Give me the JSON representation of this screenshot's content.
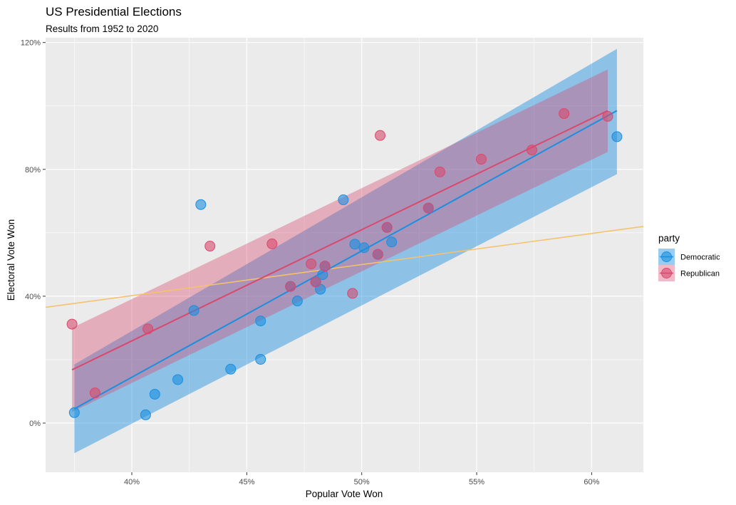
{
  "chart_data": {
    "type": "scatter",
    "title": "US Presidential Elections",
    "subtitle": "Results from 1952 to 2020",
    "xlabel": "Popular Vote Won",
    "ylabel": "Electoral Vote Won",
    "xlim": [
      0.3625,
      0.6225
    ],
    "ylim": [
      -0.155,
      1.215
    ],
    "x_ticks": [
      0.4,
      0.45,
      0.5,
      0.55,
      0.6
    ],
    "x_tick_labels": [
      "40%",
      "45%",
      "50%",
      "55%",
      "60%"
    ],
    "y_ticks": [
      0.0,
      0.4,
      0.8,
      1.2
    ],
    "y_tick_labels": [
      "0%",
      "40%",
      "80%",
      "120%"
    ],
    "grid": true,
    "legend": {
      "title": "party",
      "position": "right",
      "entries": [
        "Democratic",
        "Republican"
      ]
    },
    "colors": {
      "Democratic": "#1a8fe0",
      "Republican": "#d9496e",
      "overall_fit": "#f5c26b",
      "panel": "#ebebeb",
      "grid": "#ffffff"
    },
    "series": [
      {
        "name": "Democratic",
        "points": [
          [
            0.375,
            0.033
          ],
          [
            0.406,
            0.026
          ],
          [
            0.41,
            0.091
          ],
          [
            0.42,
            0.137
          ],
          [
            0.427,
            0.355
          ],
          [
            0.43,
            0.689
          ],
          [
            0.443,
            0.17
          ],
          [
            0.456,
            0.201
          ],
          [
            0.456,
            0.322
          ],
          [
            0.469,
            0.431
          ],
          [
            0.472,
            0.385
          ],
          [
            0.48,
            0.445
          ],
          [
            0.482,
            0.422
          ],
          [
            0.483,
            0.468
          ],
          [
            0.484,
            0.495
          ],
          [
            0.492,
            0.704
          ],
          [
            0.497,
            0.564
          ],
          [
            0.501,
            0.553
          ],
          [
            0.507,
            0.532
          ],
          [
            0.511,
            0.617
          ],
          [
            0.513,
            0.571
          ],
          [
            0.529,
            0.678
          ],
          [
            0.611,
            0.903
          ]
        ],
        "fit": {
          "x": [
            0.375,
            0.611
          ],
          "y": [
            0.045,
            0.985
          ]
        },
        "ci": {
          "x": [
            0.375,
            0.611
          ],
          "lower": [
            -0.095,
            0.785
          ],
          "upper": [
            0.185,
            1.18
          ]
        }
      },
      {
        "name": "Republican",
        "points": [
          [
            0.374,
            0.312
          ],
          [
            0.384,
            0.095
          ],
          [
            0.407,
            0.297
          ],
          [
            0.434,
            0.558
          ],
          [
            0.461,
            0.565
          ],
          [
            0.469,
            0.431
          ],
          [
            0.478,
            0.502
          ],
          [
            0.48,
            0.445
          ],
          [
            0.484,
            0.495
          ],
          [
            0.496,
            0.409
          ],
          [
            0.507,
            0.532
          ],
          [
            0.508,
            0.907
          ],
          [
            0.511,
            0.617
          ],
          [
            0.529,
            0.678
          ],
          [
            0.534,
            0.792
          ],
          [
            0.552,
            0.832
          ],
          [
            0.574,
            0.861
          ],
          [
            0.588,
            0.976
          ],
          [
            0.607,
            0.967
          ]
        ],
        "fit": {
          "x": [
            0.374,
            0.607
          ],
          "y": [
            0.168,
            0.985
          ]
        },
        "ci": {
          "x": [
            0.374,
            0.607
          ],
          "lower": [
            0.035,
            0.855
          ],
          "upper": [
            0.3,
            1.115
          ]
        }
      }
    ],
    "overall_fit": {
      "x": [
        0.3625,
        0.6225
      ],
      "y": [
        0.365,
        0.62
      ]
    }
  }
}
